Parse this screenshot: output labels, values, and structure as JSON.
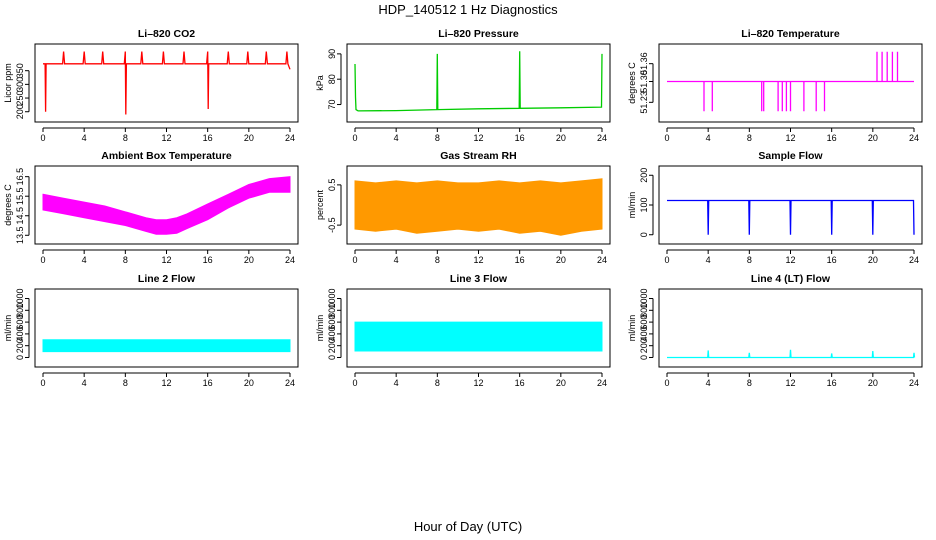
{
  "figure": {
    "title": "HDP_140512  1 Hz Diagnostics",
    "xlabel": "Hour of Day (UTC)"
  },
  "chart_data": [
    {
      "id": "co2",
      "type": "line",
      "title": "Li–820 CO2",
      "ylabel": "Licor ppm",
      "color": "#ff0000",
      "xlim": [
        0,
        24
      ],
      "ylim": [
        180,
        430
      ],
      "xticks": [
        0,
        4,
        8,
        12,
        16,
        20,
        24
      ],
      "yticks": [
        200,
        250,
        300,
        350
      ],
      "series": [
        {
          "name": "",
          "x": [
            0,
            0.2,
            0.25,
            0.3,
            1.9,
            2.0,
            2.1,
            3.9,
            4.0,
            4.1,
            5.7,
            5.8,
            5.9,
            7.9,
            8.0,
            8.05,
            8.1,
            9.5,
            9.6,
            9.7,
            11.6,
            11.7,
            11.8,
            13.6,
            13.7,
            13.8,
            15.9,
            16.0,
            16.05,
            16.1,
            17.9,
            18.0,
            18.1,
            19.8,
            19.9,
            20.0,
            21.6,
            21.7,
            21.8,
            23.6,
            23.7,
            23.8,
            24
          ],
          "y": [
            375,
            375,
            200,
            375,
            375,
            420,
            375,
            375,
            420,
            375,
            375,
            420,
            375,
            375,
            420,
            190,
            375,
            375,
            420,
            375,
            375,
            420,
            375,
            375,
            420,
            375,
            375,
            420,
            210,
            375,
            375,
            420,
            375,
            375,
            420,
            375,
            375,
            420,
            375,
            375,
            420,
            375,
            355
          ]
        }
      ]
    },
    {
      "id": "pressure",
      "type": "line",
      "title": "Li–820 Pressure",
      "ylabel": "kPa",
      "color": "#00cc00",
      "xlim": [
        0,
        24
      ],
      "ylim": [
        65,
        92
      ],
      "xticks": [
        0,
        4,
        8,
        12,
        16,
        20,
        24
      ],
      "yticks": [
        70,
        80,
        90
      ],
      "series": [
        {
          "name": "",
          "x": [
            0,
            0.05,
            0.1,
            0.3,
            4.0,
            7.95,
            8.0,
            8.05,
            12.0,
            15.95,
            16.0,
            16.05,
            20.0,
            23.95,
            24.0
          ],
          "y": [
            86,
            73,
            68,
            67.5,
            67.6,
            68,
            90,
            68,
            68.3,
            68.5,
            91,
            68.5,
            68.7,
            69,
            90
          ]
        }
      ]
    },
    {
      "id": "temperature",
      "type": "line",
      "title": "Li–820 Temperature",
      "ylabel": "degrees C",
      "color": "#ff00ff",
      "xlim": [
        0,
        24
      ],
      "ylim": [
        51.18,
        51.41
      ],
      "xticks": [
        0,
        4,
        8,
        12,
        16,
        20,
        24
      ],
      "yticks": [
        51.23,
        51.3,
        51.36
      ],
      "ytick_labels": [
        "51.23",
        "51.30",
        "51.36"
      ],
      "series": [
        {
          "name": "",
          "x": [
            0,
            3.6,
            3.6,
            3.6,
            4.4,
            4.4,
            4.4,
            9.2,
            9.2,
            9.2,
            9.4,
            9.4,
            9.4,
            10.8,
            10.8,
            10.8,
            11.2,
            11.2,
            11.2,
            11.6,
            11.6,
            11.6,
            12.0,
            12.0,
            12.0,
            13.3,
            13.3,
            13.3,
            14.5,
            14.5,
            14.5,
            15.3,
            15.3,
            15.3,
            20.4,
            20.4,
            20.4,
            20.9,
            20.9,
            20.9,
            21.4,
            21.4,
            21.4,
            21.9,
            21.9,
            21.9,
            22.4,
            22.4,
            22.4,
            24
          ],
          "y": [
            51.3,
            51.3,
            51.2,
            51.3,
            51.3,
            51.2,
            51.3,
            51.3,
            51.2,
            51.3,
            51.3,
            51.2,
            51.3,
            51.3,
            51.2,
            51.3,
            51.3,
            51.2,
            51.3,
            51.3,
            51.2,
            51.3,
            51.3,
            51.2,
            51.3,
            51.3,
            51.2,
            51.3,
            51.3,
            51.2,
            51.3,
            51.3,
            51.2,
            51.3,
            51.3,
            51.4,
            51.3,
            51.3,
            51.4,
            51.3,
            51.3,
            51.4,
            51.3,
            51.3,
            51.4,
            51.3,
            51.3,
            51.4,
            51.3,
            51.3
          ]
        }
      ]
    },
    {
      "id": "ambient",
      "type": "area",
      "title": "Ambient Box Temperature",
      "ylabel": "degrees C",
      "color": "#ff00ff",
      "xlim": [
        0,
        24
      ],
      "ylim": [
        13.3,
        16.8
      ],
      "xticks": [
        0,
        4,
        8,
        12,
        16,
        20,
        24
      ],
      "yticks": [
        13.5,
        14.5,
        15.5,
        16.5
      ],
      "series": [
        {
          "name": "",
          "x": [
            0,
            2,
            4,
            6,
            8,
            10,
            11,
            12,
            13,
            14,
            16,
            18,
            20,
            22,
            24
          ],
          "upper": [
            15.6,
            15.4,
            15.2,
            15.0,
            14.7,
            14.4,
            14.3,
            14.3,
            14.4,
            14.6,
            15.1,
            15.6,
            16.1,
            16.4,
            16.5
          ],
          "lower": [
            14.8,
            14.6,
            14.4,
            14.2,
            14.0,
            13.7,
            13.55,
            13.55,
            13.6,
            13.85,
            14.3,
            14.9,
            15.4,
            15.7,
            15.7
          ]
        }
      ]
    },
    {
      "id": "rh",
      "type": "area",
      "title": "Gas Stream RH",
      "ylabel": "percent",
      "color": "#ff9900",
      "xlim": [
        0,
        24
      ],
      "ylim": [
        -0.85,
        0.85
      ],
      "xticks": [
        0,
        4,
        8,
        12,
        16,
        20,
        24
      ],
      "yticks": [
        -0.5,
        0.5
      ],
      "series": [
        {
          "name": "",
          "x": [
            0,
            2,
            4,
            6,
            8,
            10,
            12,
            14,
            16,
            18,
            20,
            22,
            24
          ],
          "upper": [
            0.6,
            0.55,
            0.6,
            0.55,
            0.6,
            0.55,
            0.55,
            0.6,
            0.55,
            0.6,
            0.55,
            0.6,
            0.65
          ],
          "lower": [
            -0.6,
            -0.65,
            -0.6,
            -0.7,
            -0.65,
            -0.6,
            -0.65,
            -0.6,
            -0.7,
            -0.65,
            -0.75,
            -0.65,
            -0.6
          ]
        }
      ]
    },
    {
      "id": "sample",
      "type": "line",
      "title": "Sample Flow",
      "ylabel": "ml/min",
      "color": "#0000ff",
      "xlim": [
        0,
        24
      ],
      "ylim": [
        -15,
        215
      ],
      "xticks": [
        0,
        4,
        8,
        12,
        16,
        20,
        24
      ],
      "yticks": [
        0,
        100,
        200
      ],
      "series": [
        {
          "name": "",
          "x": [
            0,
            3.95,
            4.0,
            4.05,
            7.95,
            8.0,
            8.05,
            11.95,
            12.0,
            12.05,
            15.95,
            16.0,
            16.05,
            19.95,
            20.0,
            20.05,
            23.95,
            24.0
          ],
          "y": [
            115,
            115,
            0,
            115,
            115,
            0,
            115,
            115,
            0,
            115,
            115,
            0,
            115,
            115,
            0,
            115,
            115,
            0
          ]
        }
      ]
    },
    {
      "id": "line2",
      "type": "area",
      "title": "Line 2 Flow",
      "ylabel": "ml/min",
      "color": "#00ffff",
      "xlim": [
        0,
        24
      ],
      "ylim": [
        -80,
        1080
      ],
      "xticks": [
        0,
        4,
        8,
        12,
        16,
        20,
        24
      ],
      "yticks": [
        0,
        200,
        400,
        600,
        800,
        1000
      ],
      "series": [
        {
          "name": "",
          "x": [
            0,
            24
          ],
          "upper": [
            300,
            300
          ],
          "lower": [
            100,
            100
          ]
        }
      ]
    },
    {
      "id": "line3",
      "type": "area",
      "title": "Line 3 Flow",
      "ylabel": "ml/min",
      "color": "#00ffff",
      "xlim": [
        0,
        24
      ],
      "ylim": [
        -80,
        1080
      ],
      "xticks": [
        0,
        4,
        8,
        12,
        16,
        20,
        24
      ],
      "yticks": [
        0,
        200,
        400,
        600,
        800,
        1000
      ],
      "series": [
        {
          "name": "",
          "x": [
            0,
            24
          ],
          "upper": [
            600,
            600
          ],
          "lower": [
            110,
            110
          ]
        }
      ]
    },
    {
      "id": "line4",
      "type": "line",
      "title": "Line 4 (LT) Flow",
      "ylabel": "ml/min",
      "color": "#00ffff",
      "xlim": [
        0,
        24
      ],
      "ylim": [
        -80,
        1080
      ],
      "xticks": [
        0,
        4,
        8,
        12,
        16,
        20,
        24
      ],
      "yticks": [
        0,
        200,
        400,
        600,
        800,
        1000
      ],
      "series": [
        {
          "name": "",
          "x": [
            0,
            3.95,
            4.0,
            4.05,
            7.95,
            8.0,
            8.05,
            11.95,
            12.0,
            12.05,
            15.95,
            16.0,
            16.05,
            19.95,
            20.0,
            20.05,
            23.95,
            24.0,
            24.05
          ],
          "y": [
            0,
            0,
            120,
            0,
            0,
            80,
            0,
            0,
            130,
            0,
            0,
            70,
            0,
            0,
            110,
            0,
            0,
            80,
            0
          ]
        }
      ]
    }
  ]
}
